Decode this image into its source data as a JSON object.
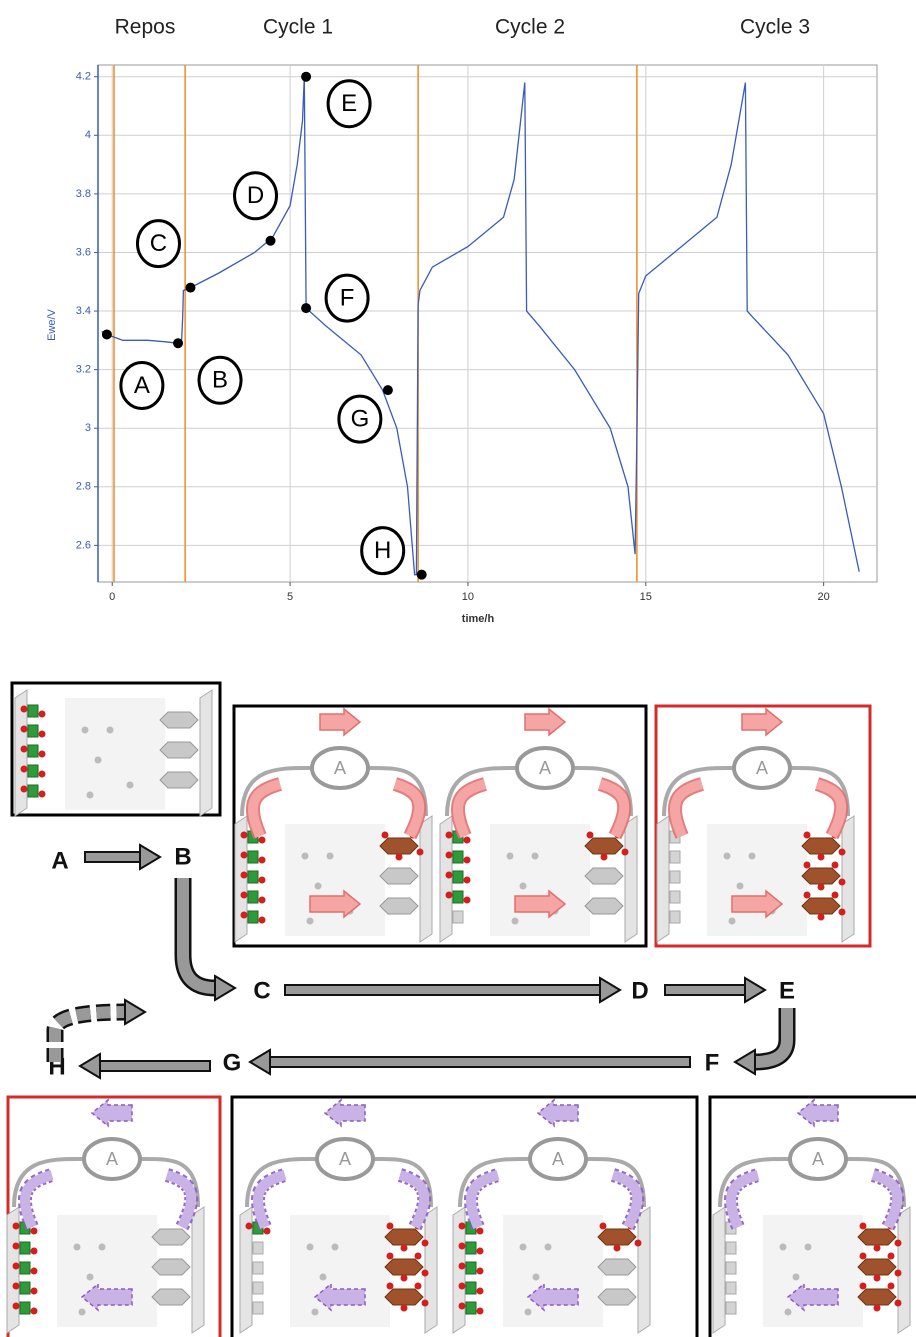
{
  "chart_data": {
    "type": "line",
    "phase_labels": [
      "Repos",
      "Cycle 1",
      "Cycle 2",
      "Cycle 3"
    ],
    "xlabel": "time/h",
    "ylabel": "Ewe/V",
    "xlim": [
      -0.4,
      21.5
    ],
    "ylim": [
      2.475,
      4.24
    ],
    "xticks": [
      0,
      5,
      10,
      15,
      20
    ],
    "yticks": [
      2.6,
      2.8,
      3,
      3.2,
      3.4,
      3.6,
      3.8,
      4,
      4.2
    ],
    "grid": true,
    "series": [
      {
        "color": "#3a5bb8",
        "x": [
          -0.3,
          -0.15,
          0.3,
          1,
          1.5,
          1.85,
          1.95,
          1.98,
          2.0,
          2.2,
          3,
          4,
          4.5,
          5,
          5.2,
          5.35,
          5.4,
          5.45,
          6,
          7,
          7.6,
          8,
          8.3,
          8.5,
          8.55,
          8.6,
          8.65,
          9,
          10,
          11,
          11.3,
          11.6,
          11.65,
          12,
          13,
          14,
          14.5,
          14.7,
          14.75,
          14.8,
          15,
          16,
          17,
          17.4,
          17.8,
          17.85,
          18,
          19,
          20,
          20.5,
          21
        ],
        "values": [
          3.33,
          3.32,
          3.3,
          3.3,
          3.295,
          3.29,
          3.3,
          3.38,
          3.47,
          3.48,
          3.53,
          3.6,
          3.65,
          3.76,
          3.9,
          4.05,
          4.2,
          3.41,
          3.35,
          3.25,
          3.13,
          3.0,
          2.8,
          2.5,
          2.5,
          3.42,
          3.47,
          3.55,
          3.62,
          3.72,
          3.85,
          4.18,
          3.4,
          3.35,
          3.2,
          3.0,
          2.8,
          2.57,
          2.98,
          3.46,
          3.52,
          3.62,
          3.72,
          3.9,
          4.18,
          3.4,
          3.38,
          3.25,
          3.05,
          2.8,
          2.51
        ]
      }
    ],
    "markers_x": [
      0.05,
      2.05,
      8.6,
      14.75
    ],
    "marker_color": "#f08a24",
    "annotations": [
      {
        "text": "A",
        "x": -0.15,
        "y": 3.32
      },
      {
        "text": "B",
        "x": 1.85,
        "y": 3.29
      },
      {
        "text": "C",
        "x": 2.2,
        "y": 3.48
      },
      {
        "text": "D",
        "x": 4.45,
        "y": 3.64
      },
      {
        "text": "E",
        "x": 5.45,
        "y": 4.2
      },
      {
        "text": "F",
        "x": 5.45,
        "y": 3.41
      },
      {
        "text": "G",
        "x": 7.75,
        "y": 3.13
      },
      {
        "text": "H",
        "x": 8.7,
        "y": 2.5
      }
    ]
  },
  "diagram": {
    "steps": [
      "A",
      "B",
      "C",
      "D",
      "E",
      "F",
      "G",
      "H"
    ],
    "ammeter": "A"
  }
}
